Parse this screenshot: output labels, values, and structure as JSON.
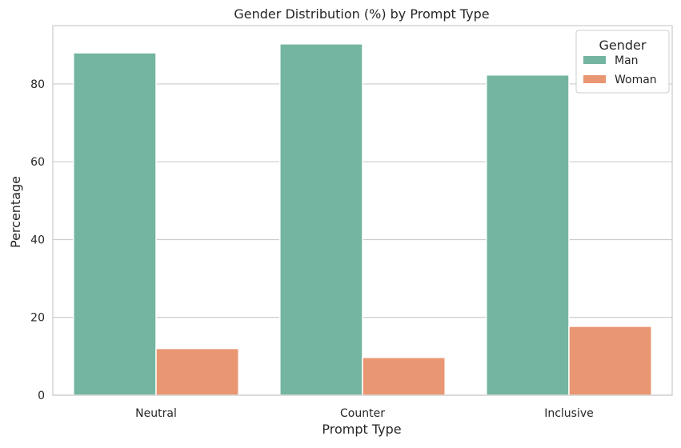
{
  "chart_data": {
    "type": "bar",
    "title": "Gender Distribution (%) by Prompt Type",
    "xlabel": "Prompt Type",
    "ylabel": "Percentage",
    "categories": [
      "Neutral",
      "Counter",
      "Inclusive"
    ],
    "series": [
      {
        "name": "Man",
        "values": [
          88.0,
          90.3,
          82.3
        ],
        "color": "#73b5a0"
      },
      {
        "name": "Woman",
        "values": [
          12.0,
          9.7,
          17.7
        ],
        "color": "#e99672"
      }
    ],
    "ylim": [
      0,
      95
    ],
    "yticks": [
      0,
      20,
      40,
      60,
      80
    ],
    "grid": true,
    "legend": {
      "title": "Gender",
      "placement": "top-right"
    }
  }
}
